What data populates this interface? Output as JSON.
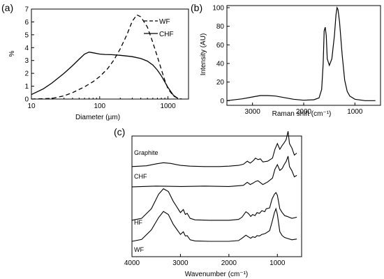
{
  "chart_data": [
    {
      "id": "a",
      "type": "line",
      "panel_label": "(a)",
      "xlabel": "Diameter (µm)",
      "ylabel": "%",
      "x_scale": "log",
      "xlim": [
        10,
        2000
      ],
      "ylim": [
        0,
        7
      ],
      "x_ticks": [
        10,
        100,
        1000
      ],
      "x_tick_labels": [
        "10",
        "100",
        "1000"
      ],
      "y_ticks": [
        0,
        1,
        2,
        3,
        4,
        5,
        6,
        7
      ],
      "y_tick_labels": [
        "0",
        "1",
        "2",
        "3",
        "4",
        "5",
        "6",
        "7"
      ],
      "legend_position": "top-right",
      "series": [
        {
          "name": "WF",
          "style": "dashed",
          "x": [
            10,
            20,
            30,
            40,
            60,
            80,
            100,
            130,
            160,
            200,
            250,
            300,
            350,
            400,
            500,
            600,
            700,
            800,
            900,
            1000,
            1200,
            1400,
            1600
          ],
          "y": [
            0.0,
            0.05,
            0.25,
            0.5,
            0.95,
            1.35,
            1.75,
            2.35,
            3.0,
            3.9,
            5.0,
            6.05,
            6.55,
            6.4,
            5.6,
            4.4,
            3.3,
            2.3,
            1.45,
            0.8,
            0.25,
            0.05,
            0.0
          ]
        },
        {
          "name": "CHF",
          "style": "solid",
          "x": [
            10,
            15,
            20,
            30,
            40,
            50,
            60,
            70,
            80,
            100,
            120,
            150,
            200,
            250,
            300,
            400,
            500,
            600,
            700,
            800,
            1000,
            1200,
            1400
          ],
          "y": [
            0.35,
            0.8,
            1.25,
            2.0,
            2.6,
            3.1,
            3.5,
            3.65,
            3.6,
            3.5,
            3.47,
            3.45,
            3.4,
            3.35,
            3.3,
            3.15,
            2.95,
            2.65,
            2.25,
            1.8,
            0.9,
            0.3,
            0.05
          ]
        }
      ]
    },
    {
      "id": "b",
      "type": "line",
      "panel_label": "(b)",
      "xlabel": "Raman shift (cm⁻¹)",
      "ylabel": "Intensity (AU)",
      "x_reversed": true,
      "xlim": [
        3500,
        500
      ],
      "ylim": [
        -5,
        100
      ],
      "x_ticks": [
        3000,
        2000,
        1000
      ],
      "x_tick_labels": [
        "3000",
        "2000",
        "1000"
      ],
      "y_ticks": [
        0,
        20,
        40,
        60,
        80,
        100
      ],
      "y_tick_labels": [
        "0",
        "20",
        "40",
        "60",
        "80",
        "100"
      ],
      "series": [
        {
          "style": "solid",
          "x": [
            3500,
            3200,
            3000,
            2850,
            2700,
            2550,
            2400,
            2200,
            2000,
            1800,
            1700,
            1650,
            1620,
            1600,
            1580,
            1560,
            1540,
            1500,
            1450,
            1400,
            1370,
            1350,
            1330,
            1300,
            1250,
            1200,
            1150,
            1100,
            1000,
            800,
            600
          ],
          "y": [
            0,
            2,
            4,
            5.5,
            5.5,
            5,
            3.5,
            1.5,
            0.5,
            1,
            3,
            12,
            40,
            75,
            79,
            70,
            45,
            38,
            45,
            70,
            92,
            100,
            98,
            85,
            50,
            22,
            10,
            5,
            1.5,
            0,
            0
          ]
        }
      ]
    },
    {
      "id": "c",
      "type": "line",
      "panel_label": "(c)",
      "xlabel": "Wavenumber (cm⁻¹)",
      "x_reversed": true,
      "xlim": [
        4000,
        500
      ],
      "x_ticks": [
        4000,
        3000,
        2000,
        1000
      ],
      "x_tick_labels": [
        "4000",
        "3000",
        "2000",
        "1000"
      ],
      "series": [
        {
          "name": "Graphite",
          "offset": 235,
          "x": [
            4000,
            3700,
            3500,
            3350,
            3200,
            3000,
            2800,
            2500,
            2200,
            2000,
            1800,
            1700,
            1620,
            1560,
            1500,
            1450,
            1400,
            1350,
            1300,
            1200,
            1100,
            1050,
            1000,
            950,
            900,
            860,
            820,
            780,
            750,
            700,
            650,
            600
          ],
          "y": [
            0,
            2,
            7,
            10,
            8,
            3,
            1,
            0,
            0,
            1,
            3,
            6,
            14,
            9,
            15,
            22,
            18,
            20,
            12,
            14,
            22,
            45,
            60,
            45,
            55,
            62,
            70,
            92,
            60,
            48,
            30,
            35
          ]
        },
        {
          "name": "CHF",
          "offset": 180,
          "x": [
            4000,
            3500,
            3000,
            2500,
            2000,
            1800,
            1700,
            1620,
            1560,
            1500,
            1450,
            1400,
            1300,
            1200,
            1100,
            1050,
            1000,
            950,
            900,
            860,
            820,
            780,
            750,
            700,
            650,
            600
          ],
          "y": [
            2,
            4,
            3,
            4,
            3,
            5,
            6,
            14,
            8,
            12,
            16,
            18,
            8,
            15,
            25,
            48,
            60,
            45,
            50,
            60,
            68,
            82,
            55,
            44,
            28,
            32
          ]
        },
        {
          "name": "HF",
          "offset": 95,
          "x": [
            4000,
            3800,
            3600,
            3450,
            3350,
            3250,
            3150,
            3000,
            2940,
            2900,
            2860,
            2800,
            2700,
            2400,
            2000,
            1800,
            1730,
            1650,
            1600,
            1550,
            1510,
            1460,
            1420,
            1370,
            1320,
            1260,
            1230,
            1160,
            1110,
            1060,
            1030,
            1000,
            950,
            900,
            850,
            800,
            700,
            600
          ],
          "y": [
            0,
            5,
            30,
            68,
            82,
            75,
            50,
            20,
            28,
            15,
            18,
            5,
            1,
            0,
            0,
            2,
            8,
            22,
            18,
            10,
            15,
            12,
            20,
            18,
            25,
            22,
            30,
            32,
            55,
            68,
            72,
            65,
            30,
            20,
            12,
            10,
            5,
            8
          ]
        },
        {
          "name": "WF",
          "offset": 40,
          "x": [
            4000,
            3800,
            3600,
            3450,
            3350,
            3250,
            3150,
            3000,
            2940,
            2900,
            2860,
            2800,
            2700,
            2400,
            2000,
            1800,
            1730,
            1650,
            1600,
            1550,
            1510,
            1460,
            1420,
            1370,
            1320,
            1260,
            1230,
            1160,
            1110,
            1060,
            1030,
            1000,
            950,
            900,
            850,
            800,
            700,
            600
          ],
          "y": [
            0,
            5,
            30,
            62,
            78,
            70,
            45,
            18,
            25,
            14,
            15,
            4,
            1,
            0,
            0,
            2,
            8,
            16,
            12,
            8,
            12,
            10,
            15,
            14,
            18,
            20,
            22,
            28,
            50,
            75,
            85,
            70,
            25,
            15,
            10,
            8,
            4,
            6
          ]
        }
      ]
    }
  ]
}
